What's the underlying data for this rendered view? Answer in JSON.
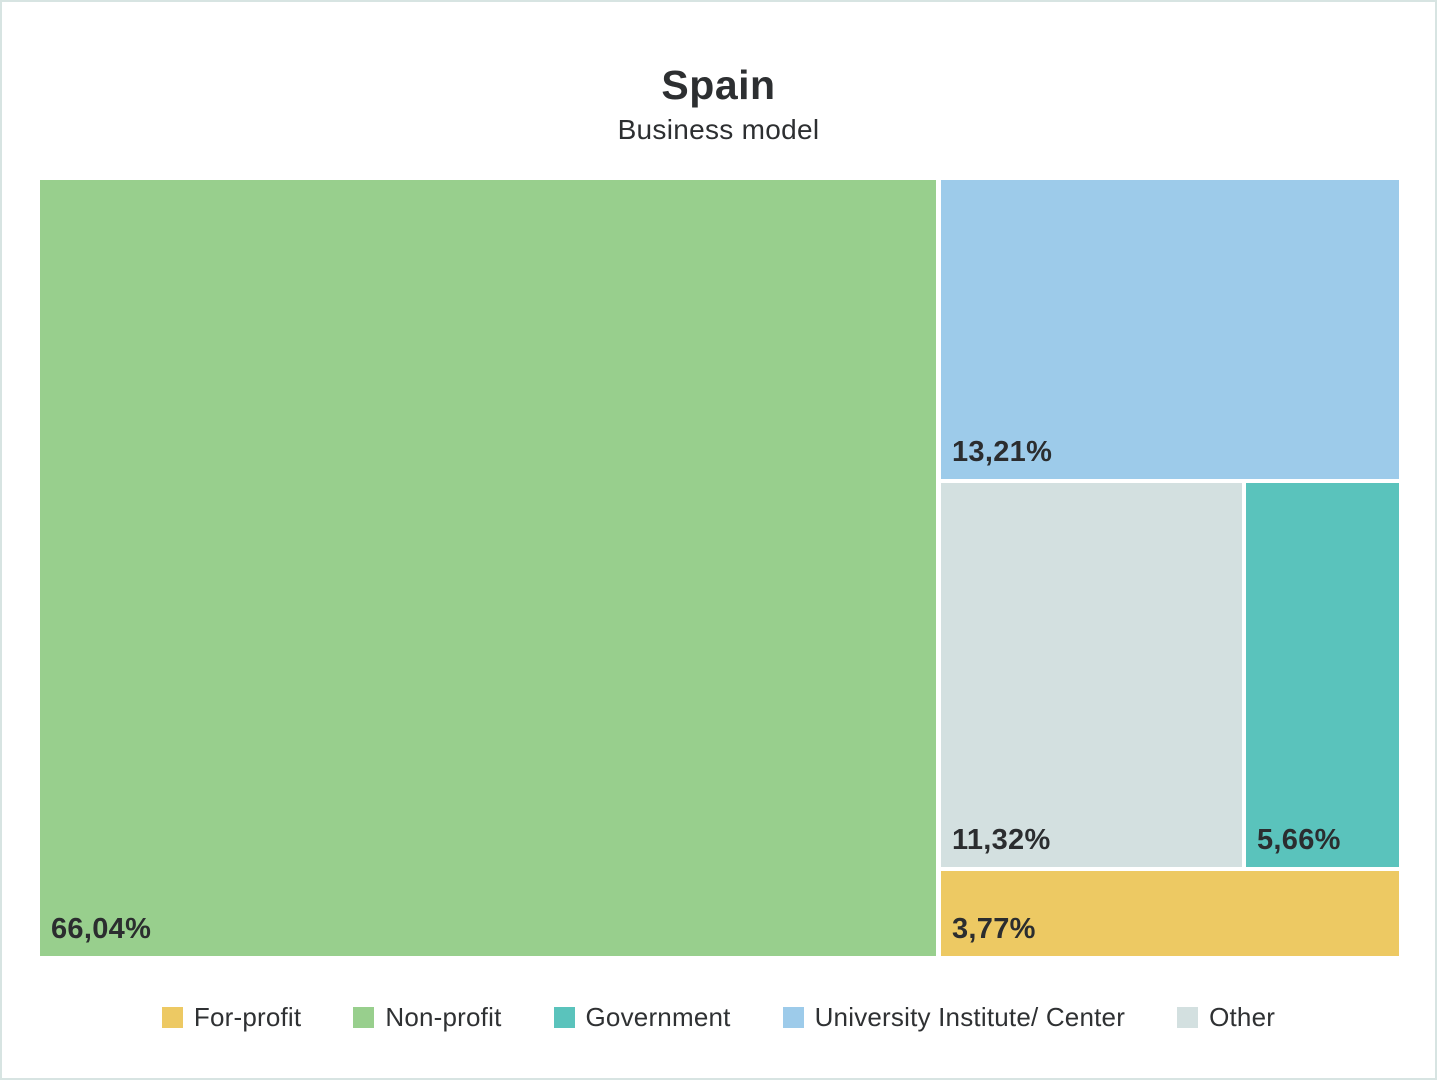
{
  "header": {
    "title": "Spain",
    "subtitle": "Business model"
  },
  "chart_data": {
    "type": "treemap",
    "title": "Spain",
    "subtitle": "Business model",
    "value_unit": "%",
    "series": [
      {
        "name": "Non-profit",
        "value": 66.04,
        "label": "66,04%",
        "color": "#98cf8d"
      },
      {
        "name": "University Institute/ Center",
        "value": 13.21,
        "label": "13,21%",
        "color": "#9dcbea"
      },
      {
        "name": "Other",
        "value": 11.32,
        "label": "11,32%",
        "color": "#d3e0e0"
      },
      {
        "name": "Government",
        "value": 5.66,
        "label": "5,66%",
        "color": "#5ac3bc"
      },
      {
        "name": "For-profit",
        "value": 3.77,
        "label": "3,77%",
        "color": "#edc963"
      }
    ],
    "legend_position": "bottom",
    "legend": [
      {
        "label": "For-profit",
        "color": "#edc963"
      },
      {
        "label": "Non-profit",
        "color": "#98cf8d"
      },
      {
        "label": "Government",
        "color": "#5ac3bc"
      },
      {
        "label": "University Institute/ Center",
        "color": "#9dcbea"
      },
      {
        "label": "Other",
        "color": "#d3e0e0"
      }
    ],
    "colors": {
      "text": "#2d2f31",
      "page_border": "#d7e4e2",
      "background": "#ffffff"
    }
  }
}
